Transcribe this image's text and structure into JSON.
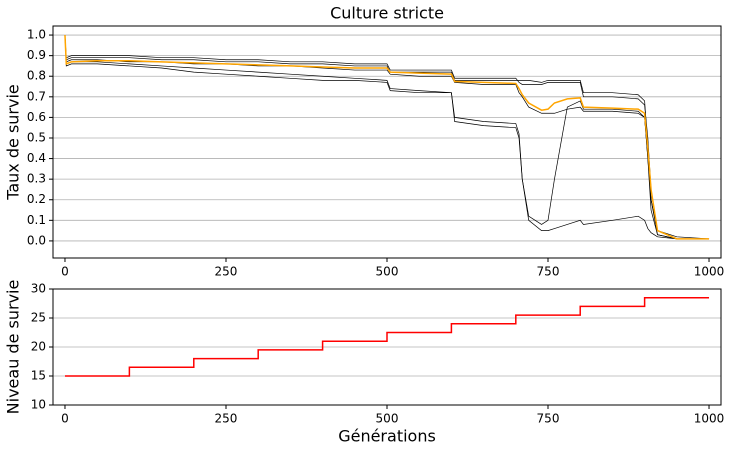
{
  "chart_data": [
    {
      "type": "line",
      "title": "Culture stricte",
      "ylabel": "Taux de survie",
      "x": [
        0,
        2,
        10,
        50,
        100,
        150,
        200,
        250,
        300,
        350,
        400,
        450,
        500,
        505,
        550,
        600,
        605,
        650,
        700,
        705,
        710,
        720,
        740,
        750,
        760,
        780,
        800,
        805,
        850,
        890,
        900,
        905,
        910,
        920,
        950,
        1000
      ],
      "series": [
        {
          "color": "#000000",
          "values": [
            1.0,
            0.88,
            0.89,
            0.89,
            0.89,
            0.88,
            0.88,
            0.87,
            0.87,
            0.86,
            0.86,
            0.85,
            0.85,
            0.82,
            0.82,
            0.82,
            0.78,
            0.78,
            0.78,
            0.78,
            0.78,
            0.78,
            0.77,
            0.78,
            0.78,
            0.78,
            0.78,
            0.72,
            0.72,
            0.71,
            0.68,
            0.45,
            0.2,
            0.03,
            0.01,
            0.01
          ]
        },
        {
          "color": "#000000",
          "values": [
            1.0,
            0.86,
            0.87,
            0.87,
            0.86,
            0.85,
            0.84,
            0.83,
            0.82,
            0.81,
            0.8,
            0.79,
            0.78,
            0.74,
            0.73,
            0.72,
            0.58,
            0.56,
            0.55,
            0.5,
            0.3,
            0.12,
            0.08,
            0.1,
            0.3,
            0.65,
            0.68,
            0.64,
            0.64,
            0.63,
            0.6,
            0.4,
            0.2,
            0.05,
            0.01,
            0.01
          ]
        },
        {
          "color": "#000000",
          "values": [
            1.0,
            0.85,
            0.86,
            0.86,
            0.85,
            0.84,
            0.82,
            0.81,
            0.8,
            0.79,
            0.78,
            0.78,
            0.77,
            0.73,
            0.72,
            0.72,
            0.6,
            0.58,
            0.57,
            0.52,
            0.3,
            0.1,
            0.05,
            0.05,
            0.06,
            0.08,
            0.1,
            0.08,
            0.1,
            0.12,
            0.1,
            0.06,
            0.04,
            0.02,
            0.01,
            0.01
          ]
        },
        {
          "color": "#000000",
          "values": [
            1.0,
            0.87,
            0.88,
            0.88,
            0.87,
            0.87,
            0.86,
            0.86,
            0.85,
            0.85,
            0.84,
            0.83,
            0.83,
            0.81,
            0.8,
            0.8,
            0.77,
            0.76,
            0.76,
            0.72,
            0.7,
            0.65,
            0.62,
            0.62,
            0.62,
            0.64,
            0.65,
            0.63,
            0.63,
            0.62,
            0.6,
            0.4,
            0.15,
            0.03,
            0.01,
            0.01
          ]
        },
        {
          "color": "#000000",
          "values": [
            1.0,
            0.89,
            0.9,
            0.9,
            0.9,
            0.89,
            0.89,
            0.88,
            0.88,
            0.87,
            0.87,
            0.86,
            0.86,
            0.83,
            0.83,
            0.83,
            0.79,
            0.79,
            0.79,
            0.77,
            0.76,
            0.76,
            0.76,
            0.77,
            0.77,
            0.77,
            0.77,
            0.7,
            0.7,
            0.69,
            0.66,
            0.5,
            0.25,
            0.05,
            0.02,
            0.01
          ]
        },
        {
          "color": "#ffa500",
          "values": [
            1.0,
            0.86,
            0.87,
            0.875,
            0.875,
            0.87,
            0.865,
            0.86,
            0.855,
            0.85,
            0.845,
            0.84,
            0.84,
            0.82,
            0.815,
            0.81,
            0.775,
            0.77,
            0.765,
            0.74,
            0.71,
            0.67,
            0.635,
            0.64,
            0.67,
            0.69,
            0.695,
            0.65,
            0.645,
            0.64,
            0.62,
            0.45,
            0.25,
            0.05,
            0.01,
            0.01
          ]
        }
      ],
      "xlim": [
        -18.6,
        1018.6
      ],
      "xticks": [
        0,
        250,
        500,
        750,
        1000
      ],
      "ylim": [
        -0.083,
        1.044
      ],
      "yticks": [
        {
          "value": 0,
          "label": "0.0"
        },
        0.1,
        0.2,
        0.3,
        0.4,
        0.5,
        0.6,
        0.7,
        0.8,
        0.9,
        {
          "value": 1,
          "label": "1.0"
        }
      ],
      "grid": true
    },
    {
      "type": "line",
      "step": "post",
      "ylabel": "Niveau de survie",
      "xlabel": "Générations",
      "x": [
        0,
        100,
        200,
        300,
        400,
        500,
        600,
        700,
        800,
        900,
        1000
      ],
      "series": [
        {
          "color": "#ff0000",
          "values": [
            15,
            16.5,
            18,
            19.5,
            21,
            22.5,
            24,
            25.5,
            27,
            28.5,
            28.5
          ]
        }
      ],
      "xlim": [
        -18.6,
        1018.6
      ],
      "xticks": [
        0,
        250,
        500,
        750,
        1000
      ],
      "ylim": [
        10,
        30
      ],
      "yticks": [
        10,
        15,
        20,
        25,
        30
      ],
      "grid": true
    }
  ]
}
